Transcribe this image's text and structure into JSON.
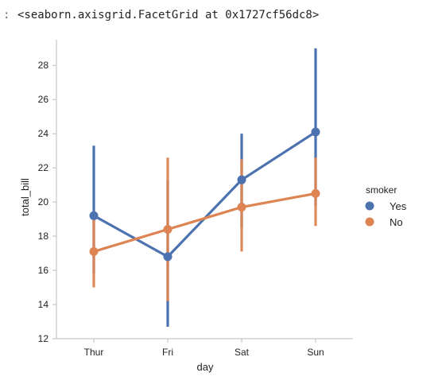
{
  "output": {
    "prompt": ":",
    "repr": "<seaborn.axisgrid.FacetGrid at 0x1727cf56dc8>"
  },
  "chart_data": {
    "type": "line",
    "categories": [
      "Thur",
      "Fri",
      "Sat",
      "Sun"
    ],
    "xlabel": "day",
    "ylabel": "total_bill",
    "ylim": [
      12,
      29.5
    ],
    "yticks": [
      12,
      14,
      16,
      18,
      20,
      22,
      24,
      26,
      28
    ],
    "grid": false,
    "legend": {
      "title": "smoker",
      "placement": "outside-right"
    },
    "series": [
      {
        "name": "Yes",
        "color": "#4c72b0",
        "values": [
          19.2,
          16.8,
          21.3,
          24.1
        ],
        "ci_low": [
          15.8,
          12.7,
          18.5,
          19.8
        ],
        "ci_high": [
          23.3,
          21.3,
          24.0,
          29.0
        ]
      },
      {
        "name": "No",
        "color": "#dd8452",
        "values": [
          17.1,
          18.4,
          19.7,
          20.5
        ],
        "ci_low": [
          15.0,
          14.2,
          17.1,
          18.6
        ],
        "ci_high": [
          19.2,
          22.6,
          22.5,
          22.6
        ]
      }
    ]
  }
}
